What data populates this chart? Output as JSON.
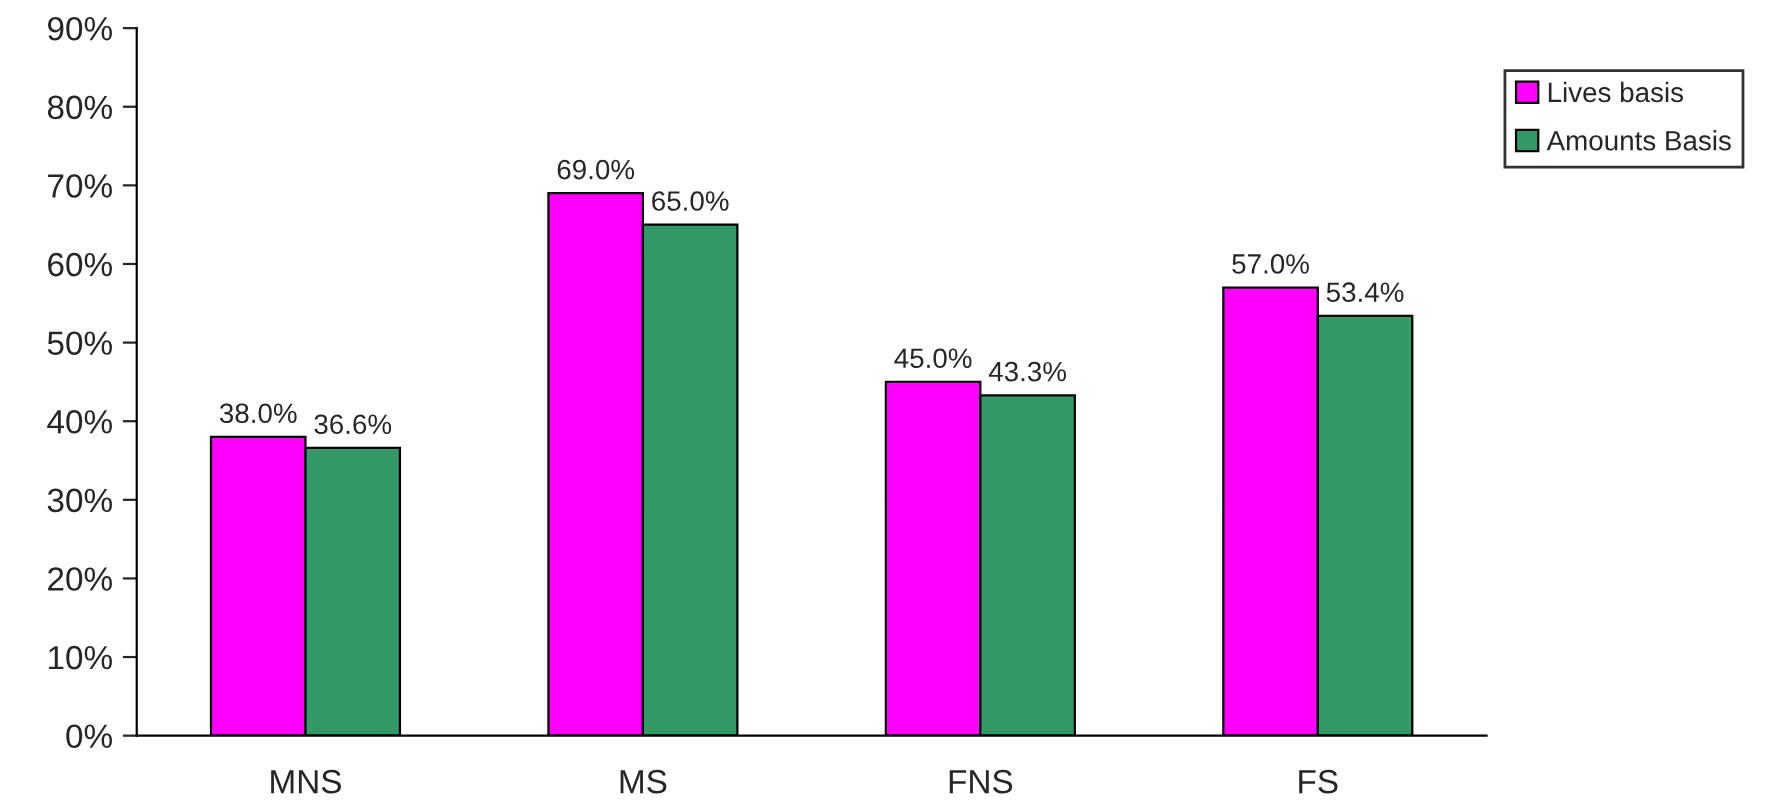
{
  "chart_data": {
    "type": "bar",
    "categories": [
      "MNS",
      "MS",
      "FNS",
      "FS"
    ],
    "series": [
      {
        "name": "Lives basis",
        "color": "#ff00ff",
        "values": [
          38.0,
          69.0,
          45.0,
          57.0
        ],
        "value_labels": [
          "38.0%",
          "69.0%",
          "45.0%",
          "57.0%"
        ]
      },
      {
        "name": "Amounts Basis",
        "color": "#339966",
        "values": [
          36.6,
          65.0,
          43.3,
          53.4
        ],
        "value_labels": [
          "36.6%",
          "65.0%",
          "43.3%",
          "53.4%"
        ]
      }
    ],
    "ylim": [
      0,
      90
    ],
    "yticks": [
      {
        "value": 0,
        "label": "0%"
      },
      {
        "value": 10,
        "label": "10%"
      },
      {
        "value": 20,
        "label": "20%"
      },
      {
        "value": 30,
        "label": "30%"
      },
      {
        "value": 40,
        "label": "40%"
      },
      {
        "value": 50,
        "label": "50%"
      },
      {
        "value": 60,
        "label": "60%"
      },
      {
        "value": 70,
        "label": "70%"
      },
      {
        "value": 80,
        "label": "80%"
      },
      {
        "value": 90,
        "label": "90%"
      }
    ],
    "grid": false,
    "legend": "right"
  }
}
